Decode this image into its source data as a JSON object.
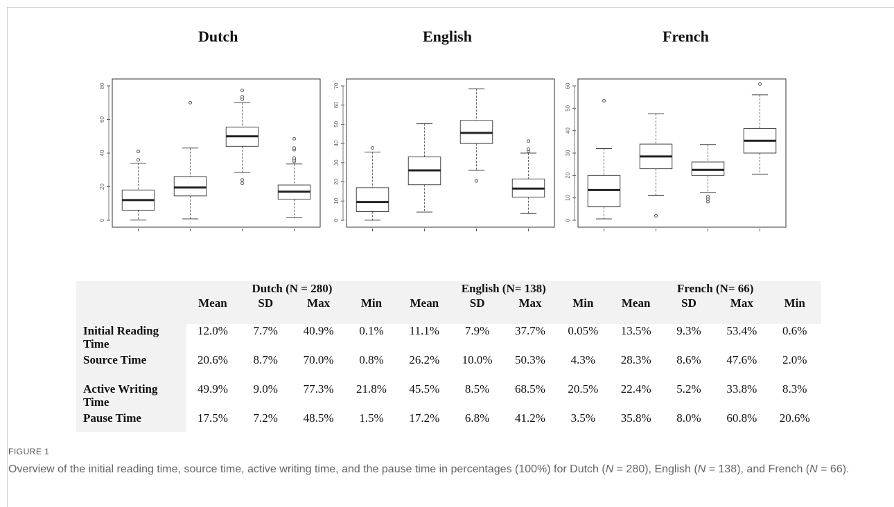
{
  "chart_data": [
    {
      "type": "box",
      "title": "Dutch",
      "ylim": [
        0,
        80
      ],
      "yticks": [
        0,
        20,
        40,
        60,
        80
      ],
      "boxes": [
        {
          "whisker_low": 0.1,
          "q1": 6,
          "median": 12,
          "q3": 18,
          "whisker_high": 34,
          "outliers": [
            36,
            41
          ]
        },
        {
          "whisker_low": 0.8,
          "q1": 14.5,
          "median": 19.5,
          "q3": 26,
          "whisker_high": 43,
          "outliers": [
            70
          ]
        },
        {
          "whisker_low": 28.5,
          "q1": 44,
          "median": 50,
          "q3": 55.5,
          "whisker_high": 70,
          "outliers": [
            22,
            24,
            72,
            73.5,
            77.3
          ]
        },
        {
          "whisker_low": 1.5,
          "q1": 12.5,
          "median": 17,
          "q3": 21,
          "whisker_high": 33.5,
          "outliers": [
            35,
            36,
            37,
            42,
            43,
            48.5
          ]
        }
      ]
    },
    {
      "type": "box",
      "title": "English",
      "ylim": [
        0,
        70
      ],
      "yticks": [
        0,
        10,
        20,
        30,
        40,
        50,
        60,
        70
      ],
      "boxes": [
        {
          "whisker_low": 0.05,
          "q1": 4.5,
          "median": 9.5,
          "q3": 17,
          "whisker_high": 35.5,
          "outliers": [
            37.7
          ]
        },
        {
          "whisker_low": 4.3,
          "q1": 18.5,
          "median": 26,
          "q3": 33,
          "whisker_high": 50.3,
          "outliers": []
        },
        {
          "whisker_low": 26,
          "q1": 40,
          "median": 45.5,
          "q3": 52,
          "whisker_high": 68.5,
          "outliers": [
            20.5
          ]
        },
        {
          "whisker_low": 3.5,
          "q1": 12,
          "median": 16.5,
          "q3": 21.5,
          "whisker_high": 35,
          "outliers": [
            36,
            37,
            41.2
          ]
        }
      ]
    },
    {
      "type": "box",
      "title": "French",
      "ylim": [
        0,
        60
      ],
      "yticks": [
        0,
        10,
        20,
        30,
        40,
        50,
        60
      ],
      "boxes": [
        {
          "whisker_low": 0.6,
          "q1": 6,
          "median": 13.5,
          "q3": 20,
          "whisker_high": 32,
          "outliers": [
            53.4
          ]
        },
        {
          "whisker_low": 11,
          "q1": 23,
          "median": 28.5,
          "q3": 34,
          "whisker_high": 47.6,
          "outliers": [
            2
          ]
        },
        {
          "whisker_low": 12.5,
          "q1": 20,
          "median": 22.5,
          "q3": 26,
          "whisker_high": 33.8,
          "outliers": [
            8.3,
            9.5,
            10.5
          ]
        },
        {
          "whisker_low": 20.6,
          "q1": 30,
          "median": 35.5,
          "q3": 41,
          "whisker_high": 56,
          "outliers": [
            60.8
          ]
        }
      ]
    }
  ],
  "table": {
    "groups": [
      "Dutch (N = 280)",
      "English (N= 138)",
      "French (N= 66)"
    ],
    "columns": [
      "Mean",
      "SD",
      "Max",
      "Min",
      "Mean",
      "SD",
      "Max",
      "Min",
      "Mean",
      "SD",
      "Max",
      "Min"
    ],
    "rows": [
      {
        "label": "Initial Reading Time",
        "values": [
          "12.0%",
          "7.7%",
          "40.9%",
          "0.1%",
          "11.1%",
          "7.9%",
          "37.7%",
          "0.05%",
          "13.5%",
          "9.3%",
          "53.4%",
          "0.6%"
        ]
      },
      {
        "label": "Source Time",
        "values": [
          "20.6%",
          "8.7%",
          "70.0%",
          "0.8%",
          "26.2%",
          "10.0%",
          "50.3%",
          "4.3%",
          "28.3%",
          "8.6%",
          "47.6%",
          "2.0%"
        ]
      },
      {
        "label": "Active Writing Time",
        "values": [
          "49.9%",
          "9.0%",
          "77.3%",
          "21.8%",
          "45.5%",
          "8.5%",
          "68.5%",
          "20.5%",
          "22.4%",
          "5.2%",
          "33.8%",
          "8.3%"
        ]
      },
      {
        "label": "Pause Time",
        "values": [
          "17.5%",
          "7.2%",
          "48.5%",
          "1.5%",
          "17.2%",
          "6.8%",
          "41.2%",
          "3.5%",
          "35.8%",
          "8.0%",
          "60.8%",
          "20.6%"
        ]
      }
    ]
  },
  "figure": {
    "label": "FIGURE 1",
    "caption_parts": [
      "Overview of the initial reading time, source time, active writing time, and the pause time in percentages (100%) for Dutch (",
      "N",
      " = 280), English (",
      "N",
      " = 138), and French (",
      "N",
      " = 66)."
    ]
  }
}
